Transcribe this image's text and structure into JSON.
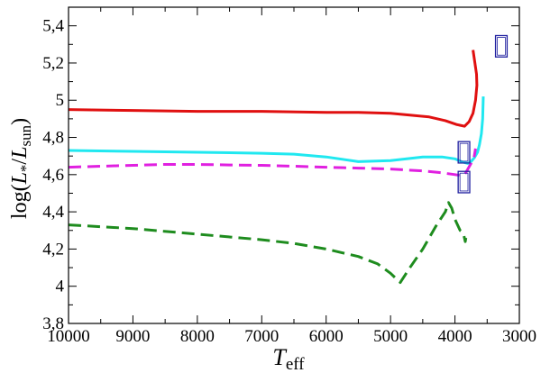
{
  "chart_data": {
    "type": "line",
    "title": "",
    "xlabel_main": "T",
    "xlabel_sub": "eff",
    "ylabel": "log(L*/Lsun)",
    "ylabel_parts": {
      "pre": "log(",
      "L1": "L",
      "star": "*",
      "slash": "/",
      "L2": "L",
      "sun": "sun",
      "post": ")"
    },
    "xlim": [
      10000,
      3000
    ],
    "ylim": [
      3.8,
      5.5
    ],
    "x_ticks": [
      10000,
      9000,
      8000,
      7000,
      6000,
      5000,
      4000,
      3000
    ],
    "x_tick_labels": [
      "10000",
      "9000",
      "8000",
      "7000",
      "6000",
      "5000",
      "4000",
      "3000"
    ],
    "y_ticks": [
      3.8,
      4.0,
      4.2,
      4.4,
      4.6,
      4.8,
      5.0,
      5.2,
      5.4
    ],
    "y_tick_labels": [
      "3,8",
      "4",
      "4,2",
      "4,4",
      "4,6",
      "4,8",
      "5",
      "5,2",
      "5,4"
    ],
    "grid": false,
    "series": [
      {
        "color": "#e01010",
        "style": "solid",
        "x": [
          10000,
          9000,
          8000,
          7000,
          6000,
          5500,
          5000,
          4700,
          4400,
          4150,
          3980,
          3850,
          3780,
          3720,
          3680,
          3660,
          3665,
          3690,
          3720
        ],
        "y": [
          4.95,
          4.945,
          4.94,
          4.94,
          4.935,
          4.935,
          4.93,
          4.92,
          4.91,
          4.89,
          4.87,
          4.86,
          4.885,
          4.93,
          5.0,
          5.08,
          5.14,
          5.2,
          5.27
        ]
      },
      {
        "color": "#20e8f0",
        "style": "solid",
        "x": [
          10000,
          9000,
          8000,
          7000,
          6500,
          6000,
          5500,
          5000,
          4500,
          4200,
          4000,
          3900,
          3800,
          3750,
          3700,
          3650,
          3620,
          3590,
          3570,
          3560
        ],
        "y": [
          4.73,
          4.725,
          4.72,
          4.715,
          4.71,
          4.695,
          4.67,
          4.675,
          4.695,
          4.695,
          4.685,
          4.67,
          4.66,
          4.67,
          4.69,
          4.72,
          4.76,
          4.82,
          4.9,
          5.02
        ]
      },
      {
        "color": "#e020e0",
        "style": "dashed",
        "x": [
          10000,
          9500,
          9000,
          8500,
          8000,
          7500,
          7000,
          6500,
          6000,
          5500,
          5000,
          4500,
          4200,
          4000,
          3900,
          3850,
          3800,
          3750,
          3700,
          3680
        ],
        "y": [
          4.64,
          4.645,
          4.65,
          4.655,
          4.655,
          4.652,
          4.65,
          4.645,
          4.64,
          4.635,
          4.63,
          4.62,
          4.61,
          4.6,
          4.595,
          4.6,
          4.63,
          4.66,
          4.7,
          4.74
        ]
      },
      {
        "color": "#1e8c1e",
        "style": "dashed",
        "x": [
          10000,
          9000,
          8000,
          7000,
          6500,
          6000,
          5500,
          5200,
          5000,
          4850,
          4700,
          4500,
          4300,
          4150,
          4100,
          4050,
          4000,
          3920,
          3880,
          3860,
          3840,
          3830
        ],
        "y": [
          4.33,
          4.31,
          4.28,
          4.25,
          4.23,
          4.2,
          4.16,
          4.12,
          4.07,
          4.02,
          4.1,
          4.2,
          4.32,
          4.4,
          4.45,
          4.42,
          4.36,
          4.3,
          4.29,
          4.27,
          4.24,
          4.26
        ]
      }
    ],
    "boxes": {
      "color": "#2020a0",
      "points": [
        {
          "x": 3280,
          "y": 5.29
        },
        {
          "x": 3860,
          "y": 4.72
        },
        {
          "x": 3860,
          "y": 4.56
        }
      ],
      "size_units": {
        "dx": 180,
        "dy": 0.115
      }
    }
  }
}
